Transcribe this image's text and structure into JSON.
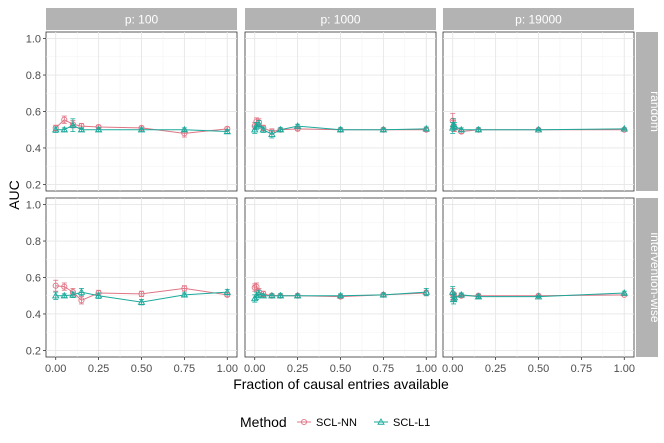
{
  "chart_data": {
    "type": "line",
    "xlabel": "Fraction of causal entries available",
    "ylabel": "AUC",
    "xlim": [
      0,
      1
    ],
    "ylim": [
      0.2,
      1.0
    ],
    "xticks": [
      "0.00",
      "0.25",
      "0.50",
      "0.75",
      "1.00"
    ],
    "yticks": [
      "0.2",
      "0.4",
      "0.6",
      "0.8",
      "1.0"
    ],
    "legend_title": "Method",
    "legend_position": "bottom",
    "grid": true,
    "colors": {
      "SCL-NN": "#e07585",
      "SCL-L1": "#1aa99b"
    },
    "facet_cols": [
      "p: 100",
      "p: 1000",
      "p: 19000"
    ],
    "facet_rows": [
      "random",
      "intervention-wise"
    ],
    "panels": [
      {
        "col": "p: 100",
        "row": "random",
        "series": [
          {
            "name": "SCL-NN",
            "x": [
              0,
              0.05,
              0.1,
              0.15,
              0.25,
              0.5,
              0.75,
              1.0
            ],
            "y": [
              0.51,
              0.555,
              0.53,
              0.52,
              0.515,
              0.51,
              0.48,
              0.505
            ],
            "err": [
              0.015,
              0.02,
              0.02,
              0.015,
              0.01,
              0.01,
              0.02,
              0.01
            ]
          },
          {
            "name": "SCL-L1",
            "x": [
              0,
              0.05,
              0.1,
              0.15,
              0.25,
              0.5,
              0.75,
              1.0
            ],
            "y": [
              0.5,
              0.5,
              0.525,
              0.5,
              0.5,
              0.5,
              0.5,
              0.49
            ],
            "err": [
              0.015,
              0.01,
              0.035,
              0.01,
              0.01,
              0.01,
              0.01,
              0.01
            ]
          }
        ]
      },
      {
        "col": "p: 1000",
        "row": "random",
        "series": [
          {
            "name": "SCL-NN",
            "x": [
              0,
              0.01,
              0.025,
              0.05,
              0.1,
              0.15,
              0.25,
              0.5,
              0.75,
              1.0
            ],
            "y": [
              0.52,
              0.545,
              0.54,
              0.51,
              0.49,
              0.5,
              0.505,
              0.5,
              0.5,
              0.5
            ],
            "err": [
              0.02,
              0.02,
              0.02,
              0.015,
              0.015,
              0.01,
              0.01,
              0.01,
              0.01,
              0.01
            ]
          },
          {
            "name": "SCL-L1",
            "x": [
              0,
              0.01,
              0.025,
              0.05,
              0.1,
              0.15,
              0.25,
              0.5,
              0.75,
              1.0
            ],
            "y": [
              0.5,
              0.52,
              0.53,
              0.5,
              0.475,
              0.5,
              0.52,
              0.5,
              0.5,
              0.505
            ],
            "err": [
              0.02,
              0.02,
              0.02,
              0.015,
              0.02,
              0.01,
              0.01,
              0.01,
              0.01,
              0.01
            ]
          }
        ]
      },
      {
        "col": "p: 19000",
        "row": "random",
        "series": [
          {
            "name": "SCL-NN",
            "x": [
              0,
              0.005,
              0.01,
              0.05,
              0.15,
              0.5,
              1.0
            ],
            "y": [
              0.55,
              0.52,
              0.51,
              0.49,
              0.5,
              0.5,
              0.5
            ],
            "err": [
              0.04,
              0.03,
              0.02,
              0.01,
              0.01,
              0.005,
              0.005
            ]
          },
          {
            "name": "SCL-L1",
            "x": [
              0,
              0.005,
              0.01,
              0.05,
              0.15,
              0.5,
              1.0
            ],
            "y": [
              0.51,
              0.53,
              0.52,
              0.5,
              0.5,
              0.5,
              0.505
            ],
            "err": [
              0.03,
              0.03,
              0.02,
              0.01,
              0.01,
              0.005,
              0.005
            ]
          }
        ]
      },
      {
        "col": "p: 100",
        "row": "intervention-wise",
        "series": [
          {
            "name": "SCL-NN",
            "x": [
              0,
              0.05,
              0.1,
              0.15,
              0.25,
              0.5,
              0.75,
              1.0
            ],
            "y": [
              0.555,
              0.55,
              0.52,
              0.475,
              0.515,
              0.51,
              0.54,
              0.505
            ],
            "err": [
              0.03,
              0.02,
              0.02,
              0.02,
              0.015,
              0.015,
              0.015,
              0.01
            ]
          },
          {
            "name": "SCL-L1",
            "x": [
              0,
              0.05,
              0.1,
              0.15,
              0.25,
              0.5,
              0.75,
              1.0
            ],
            "y": [
              0.5,
              0.5,
              0.505,
              0.52,
              0.5,
              0.465,
              0.505,
              0.52
            ],
            "err": [
              0.02,
              0.01,
              0.015,
              0.02,
              0.015,
              0.015,
              0.01,
              0.015
            ]
          }
        ]
      },
      {
        "col": "p: 1000",
        "row": "intervention-wise",
        "series": [
          {
            "name": "SCL-NN",
            "x": [
              0,
              0.01,
              0.025,
              0.05,
              0.1,
              0.15,
              0.25,
              0.5,
              0.75,
              1.0
            ],
            "y": [
              0.545,
              0.55,
              0.52,
              0.51,
              0.5,
              0.5,
              0.5,
              0.495,
              0.505,
              0.515
            ],
            "err": [
              0.02,
              0.02,
              0.02,
              0.015,
              0.01,
              0.01,
              0.01,
              0.01,
              0.01,
              0.015
            ]
          },
          {
            "name": "SCL-L1",
            "x": [
              0,
              0.01,
              0.025,
              0.05,
              0.1,
              0.15,
              0.25,
              0.5,
              0.75,
              1.0
            ],
            "y": [
              0.485,
              0.5,
              0.51,
              0.5,
              0.5,
              0.5,
              0.5,
              0.5,
              0.505,
              0.52
            ],
            "err": [
              0.02,
              0.02,
              0.02,
              0.01,
              0.01,
              0.01,
              0.01,
              0.01,
              0.01,
              0.02
            ]
          }
        ]
      },
      {
        "col": "p: 19000",
        "row": "intervention-wise",
        "series": [
          {
            "name": "SCL-NN",
            "x": [
              0,
              0.005,
              0.01,
              0.05,
              0.15,
              0.5,
              1.0
            ],
            "y": [
              0.51,
              0.5,
              0.495,
              0.5,
              0.5,
              0.5,
              0.505
            ],
            "err": [
              0.03,
              0.02,
              0.02,
              0.01,
              0.01,
              0.005,
              0.005
            ]
          },
          {
            "name": "SCL-L1",
            "x": [
              0,
              0.005,
              0.01,
              0.05,
              0.15,
              0.5,
              1.0
            ],
            "y": [
              0.52,
              0.48,
              0.49,
              0.505,
              0.495,
              0.495,
              0.515
            ],
            "err": [
              0.03,
              0.025,
              0.02,
              0.01,
              0.01,
              0.005,
              0.01
            ]
          }
        ]
      }
    ]
  }
}
